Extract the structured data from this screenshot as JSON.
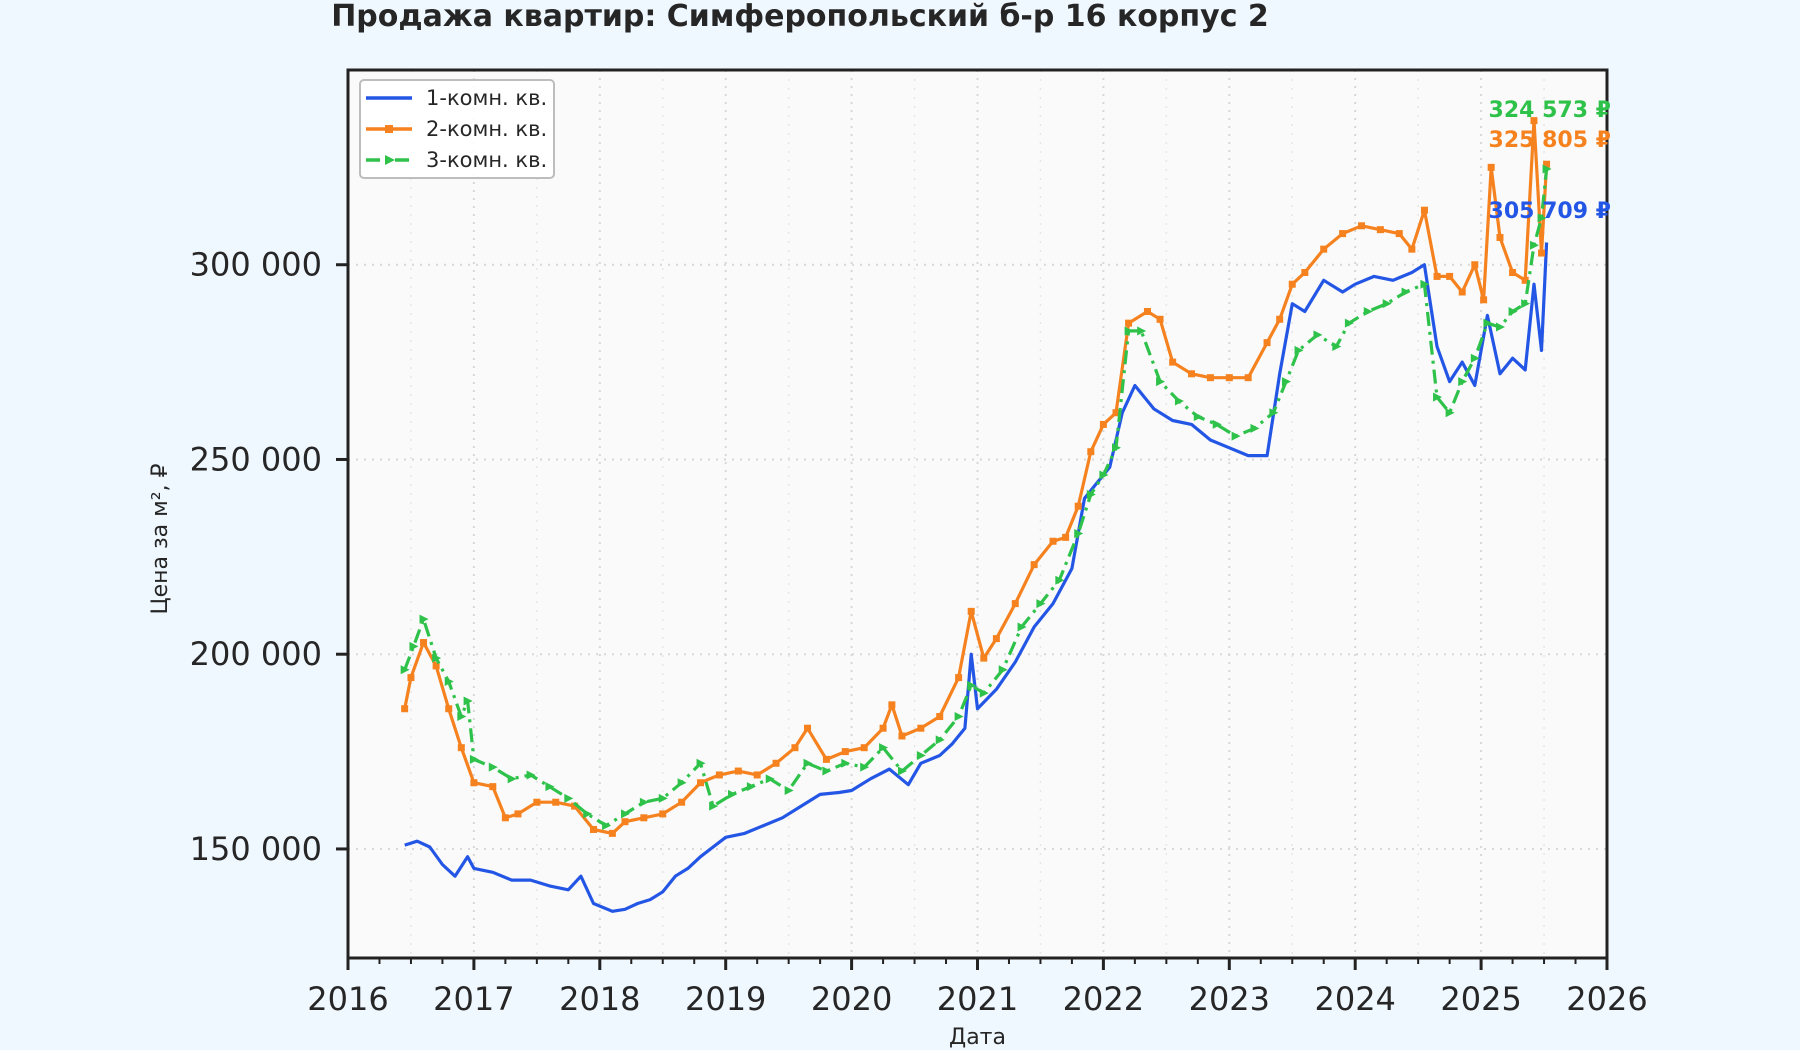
{
  "chart_data": {
    "type": "line",
    "title": "Продажа квартир: Симферопольский б-р 16 корпус 2",
    "xlabel": "Дата",
    "ylabel": "Цена за м², ₽",
    "xlim": [
      2016.0,
      2026.0
    ],
    "ylim": [
      122000,
      350000
    ],
    "x_ticks": [
      "2016",
      "2017",
      "2018",
      "2019",
      "2020",
      "2021",
      "2022",
      "2023",
      "2024",
      "2025",
      "2026"
    ],
    "y_ticks": [
      {
        "value": 150000,
        "label": "150 000"
      },
      {
        "value": 200000,
        "label": "200 000"
      },
      {
        "value": 250000,
        "label": "250 000"
      },
      {
        "value": 300000,
        "label": "300 000"
      }
    ],
    "grid": true,
    "legend_position": "top-left",
    "series": [
      {
        "name": "1-комн. кв.",
        "color": "#2456e6",
        "marker": "none",
        "end_label": "305 709 ₽",
        "points": [
          [
            2016.45,
            151000
          ],
          [
            2016.55,
            152000
          ],
          [
            2016.65,
            150500
          ],
          [
            2016.75,
            146000
          ],
          [
            2016.85,
            143000
          ],
          [
            2016.95,
            148000
          ],
          [
            2017.0,
            145000
          ],
          [
            2017.15,
            144000
          ],
          [
            2017.3,
            142000
          ],
          [
            2017.45,
            142000
          ],
          [
            2017.6,
            140500
          ],
          [
            2017.75,
            139500
          ],
          [
            2017.85,
            143000
          ],
          [
            2017.95,
            136000
          ],
          [
            2018.1,
            134000
          ],
          [
            2018.2,
            134500
          ],
          [
            2018.3,
            136000
          ],
          [
            2018.4,
            137000
          ],
          [
            2018.5,
            139000
          ],
          [
            2018.6,
            143000
          ],
          [
            2018.7,
            145000
          ],
          [
            2018.8,
            148000
          ],
          [
            2018.9,
            150500
          ],
          [
            2019.0,
            153000
          ],
          [
            2019.15,
            154000
          ],
          [
            2019.3,
            156000
          ],
          [
            2019.45,
            158000
          ],
          [
            2019.6,
            161000
          ],
          [
            2019.75,
            164000
          ],
          [
            2019.9,
            164500
          ],
          [
            2020.0,
            165000
          ],
          [
            2020.15,
            168000
          ],
          [
            2020.3,
            170500
          ],
          [
            2020.45,
            166500
          ],
          [
            2020.55,
            172000
          ],
          [
            2020.7,
            174000
          ],
          [
            2020.8,
            177000
          ],
          [
            2020.9,
            181000
          ],
          [
            2020.95,
            200000
          ],
          [
            2021.0,
            186000
          ],
          [
            2021.15,
            191000
          ],
          [
            2021.3,
            198000
          ],
          [
            2021.45,
            207000
          ],
          [
            2021.6,
            213000
          ],
          [
            2021.75,
            222000
          ],
          [
            2021.85,
            240000
          ],
          [
            2021.95,
            244000
          ],
          [
            2022.05,
            248000
          ],
          [
            2022.15,
            262000
          ],
          [
            2022.25,
            269000
          ],
          [
            2022.4,
            263000
          ],
          [
            2022.55,
            260000
          ],
          [
            2022.7,
            259000
          ],
          [
            2022.85,
            255000
          ],
          [
            2023.0,
            253000
          ],
          [
            2023.15,
            251000
          ],
          [
            2023.3,
            251000
          ],
          [
            2023.4,
            272000
          ],
          [
            2023.5,
            290000
          ],
          [
            2023.6,
            288000
          ],
          [
            2023.75,
            296000
          ],
          [
            2023.9,
            293000
          ],
          [
            2024.0,
            295000
          ],
          [
            2024.15,
            297000
          ],
          [
            2024.3,
            296000
          ],
          [
            2024.45,
            298000
          ],
          [
            2024.55,
            300000
          ],
          [
            2024.65,
            279000
          ],
          [
            2024.75,
            270000
          ],
          [
            2024.85,
            275000
          ],
          [
            2024.95,
            269000
          ],
          [
            2025.05,
            287000
          ],
          [
            2025.15,
            272000
          ],
          [
            2025.25,
            276000
          ],
          [
            2025.35,
            273000
          ],
          [
            2025.42,
            295000
          ],
          [
            2025.48,
            278000
          ],
          [
            2025.52,
            305709
          ]
        ]
      },
      {
        "name": "2-комн. кв.",
        "color": "#f5821f",
        "marker": "square",
        "end_label": "325 805 ₽",
        "points": [
          [
            2016.45,
            186000
          ],
          [
            2016.5,
            194000
          ],
          [
            2016.6,
            203000
          ],
          [
            2016.7,
            197000
          ],
          [
            2016.8,
            186000
          ],
          [
            2016.9,
            176000
          ],
          [
            2017.0,
            167000
          ],
          [
            2017.15,
            166000
          ],
          [
            2017.25,
            158000
          ],
          [
            2017.35,
            159000
          ],
          [
            2017.5,
            162000
          ],
          [
            2017.65,
            162000
          ],
          [
            2017.8,
            161000
          ],
          [
            2017.95,
            155000
          ],
          [
            2018.1,
            154000
          ],
          [
            2018.2,
            157000
          ],
          [
            2018.35,
            158000
          ],
          [
            2018.5,
            159000
          ],
          [
            2018.65,
            162000
          ],
          [
            2018.8,
            167000
          ],
          [
            2018.95,
            169000
          ],
          [
            2019.1,
            170000
          ],
          [
            2019.25,
            169000
          ],
          [
            2019.4,
            172000
          ],
          [
            2019.55,
            176000
          ],
          [
            2019.65,
            181000
          ],
          [
            2019.8,
            173000
          ],
          [
            2019.95,
            175000
          ],
          [
            2020.1,
            176000
          ],
          [
            2020.25,
            181000
          ],
          [
            2020.32,
            187000
          ],
          [
            2020.4,
            179000
          ],
          [
            2020.55,
            181000
          ],
          [
            2020.7,
            184000
          ],
          [
            2020.85,
            194000
          ],
          [
            2020.95,
            211000
          ],
          [
            2021.05,
            199000
          ],
          [
            2021.15,
            204000
          ],
          [
            2021.3,
            213000
          ],
          [
            2021.45,
            223000
          ],
          [
            2021.6,
            229000
          ],
          [
            2021.7,
            230000
          ],
          [
            2021.8,
            238000
          ],
          [
            2021.9,
            252000
          ],
          [
            2022.0,
            259000
          ],
          [
            2022.1,
            262000
          ],
          [
            2022.2,
            285000
          ],
          [
            2022.35,
            288000
          ],
          [
            2022.45,
            286000
          ],
          [
            2022.55,
            275000
          ],
          [
            2022.7,
            272000
          ],
          [
            2022.85,
            271000
          ],
          [
            2023.0,
            271000
          ],
          [
            2023.15,
            271000
          ],
          [
            2023.3,
            280000
          ],
          [
            2023.4,
            286000
          ],
          [
            2023.5,
            295000
          ],
          [
            2023.6,
            298000
          ],
          [
            2023.75,
            304000
          ],
          [
            2023.9,
            308000
          ],
          [
            2024.05,
            310000
          ],
          [
            2024.2,
            309000
          ],
          [
            2024.35,
            308000
          ],
          [
            2024.45,
            304000
          ],
          [
            2024.55,
            314000
          ],
          [
            2024.65,
            297000
          ],
          [
            2024.75,
            297000
          ],
          [
            2024.85,
            293000
          ],
          [
            2024.95,
            300000
          ],
          [
            2025.02,
            291000
          ],
          [
            2025.08,
            325000
          ],
          [
            2025.15,
            307000
          ],
          [
            2025.25,
            298000
          ],
          [
            2025.35,
            296000
          ],
          [
            2025.42,
            337000
          ],
          [
            2025.48,
            303000
          ],
          [
            2025.52,
            325805
          ]
        ]
      },
      {
        "name": "3-комн. кв.",
        "color": "#2ec24a",
        "marker": "triangle",
        "end_label": "324 573 ₽",
        "points": [
          [
            2016.45,
            196000
          ],
          [
            2016.52,
            202000
          ],
          [
            2016.6,
            209000
          ],
          [
            2016.7,
            199000
          ],
          [
            2016.8,
            193000
          ],
          [
            2016.9,
            184000
          ],
          [
            2016.95,
            188000
          ],
          [
            2017.0,
            173000
          ],
          [
            2017.15,
            171000
          ],
          [
            2017.3,
            168000
          ],
          [
            2017.45,
            169000
          ],
          [
            2017.6,
            166000
          ],
          [
            2017.75,
            163000
          ],
          [
            2017.9,
            159000
          ],
          [
            2018.05,
            156000
          ],
          [
            2018.2,
            159000
          ],
          [
            2018.35,
            162000
          ],
          [
            2018.5,
            163000
          ],
          [
            2018.65,
            167000
          ],
          [
            2018.8,
            172000
          ],
          [
            2018.9,
            161000
          ],
          [
            2019.05,
            164000
          ],
          [
            2019.2,
            166000
          ],
          [
            2019.35,
            168000
          ],
          [
            2019.5,
            165000
          ],
          [
            2019.65,
            172000
          ],
          [
            2019.8,
            170000
          ],
          [
            2019.95,
            172000
          ],
          [
            2020.1,
            171000
          ],
          [
            2020.25,
            176000
          ],
          [
            2020.4,
            170000
          ],
          [
            2020.55,
            174000
          ],
          [
            2020.7,
            178000
          ],
          [
            2020.85,
            184000
          ],
          [
            2020.95,
            192000
          ],
          [
            2021.05,
            190000
          ],
          [
            2021.2,
            196000
          ],
          [
            2021.35,
            207000
          ],
          [
            2021.5,
            213000
          ],
          [
            2021.65,
            219000
          ],
          [
            2021.8,
            231000
          ],
          [
            2021.9,
            241000
          ],
          [
            2022.0,
            246000
          ],
          [
            2022.1,
            253000
          ],
          [
            2022.2,
            283000
          ],
          [
            2022.3,
            283000
          ],
          [
            2022.45,
            270000
          ],
          [
            2022.6,
            265000
          ],
          [
            2022.75,
            261000
          ],
          [
            2022.9,
            259000
          ],
          [
            2023.05,
            256000
          ],
          [
            2023.2,
            258000
          ],
          [
            2023.35,
            262000
          ],
          [
            2023.45,
            270000
          ],
          [
            2023.55,
            278000
          ],
          [
            2023.7,
            282000
          ],
          [
            2023.85,
            279000
          ],
          [
            2023.95,
            285000
          ],
          [
            2024.1,
            288000
          ],
          [
            2024.25,
            290000
          ],
          [
            2024.4,
            293000
          ],
          [
            2024.55,
            295000
          ],
          [
            2024.65,
            266000
          ],
          [
            2024.75,
            262000
          ],
          [
            2024.85,
            270000
          ],
          [
            2024.95,
            276000
          ],
          [
            2025.05,
            285000
          ],
          [
            2025.15,
            284000
          ],
          [
            2025.25,
            288000
          ],
          [
            2025.35,
            290000
          ],
          [
            2025.42,
            305000
          ],
          [
            2025.48,
            312000
          ],
          [
            2025.52,
            324573
          ]
        ]
      }
    ]
  }
}
